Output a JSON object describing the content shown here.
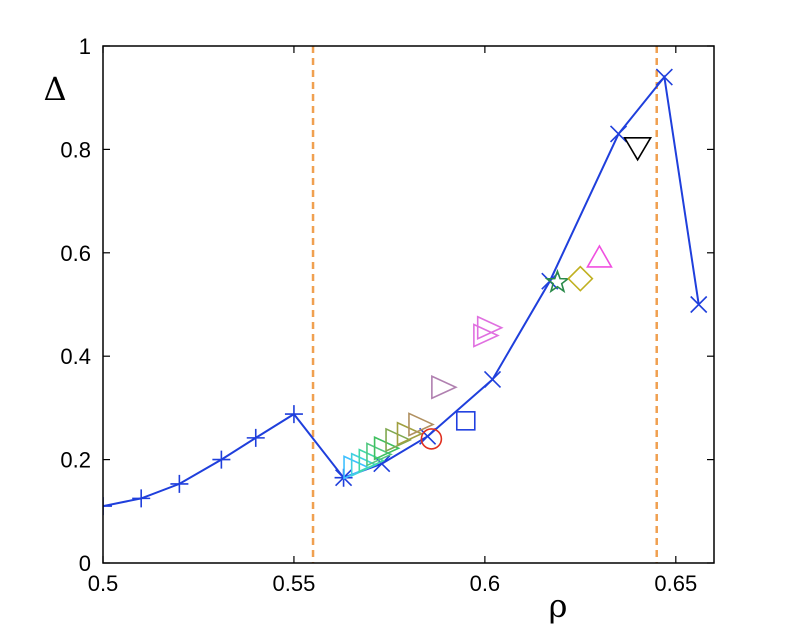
{
  "chart_data": {
    "type": "scatter",
    "title": "",
    "xlabel": "ρ",
    "ylabel": "Δ",
    "xlim": [
      0.5,
      0.66
    ],
    "ylim": [
      0,
      1
    ],
    "xticks": [
      0.5,
      0.55,
      0.6,
      0.65
    ],
    "xtick_labels": [
      "0.5",
      "0.55",
      "0.6",
      "0.65"
    ],
    "yticks": [
      0,
      0.2,
      0.4,
      0.6,
      0.8,
      1
    ],
    "ytick_labels": [
      "0",
      "0.2",
      "0.4",
      "0.6",
      "0.8",
      "1"
    ],
    "grid": false,
    "legend": "none",
    "vertical_lines": {
      "x": [
        0.555,
        0.645
      ],
      "color": "#f0a050",
      "style": "dashed"
    },
    "series": [
      {
        "marker": "plus",
        "color": "#1f3fdc",
        "line": true,
        "points": [
          [
            0.5,
            0.11
          ],
          [
            0.51,
            0.125
          ],
          [
            0.52,
            0.153
          ],
          [
            0.531,
            0.2
          ],
          [
            0.54,
            0.242
          ],
          [
            0.55,
            0.288
          ],
          [
            0.563,
            0.165
          ]
        ]
      },
      {
        "marker": "x",
        "color": "#1f3fdc",
        "line": true,
        "points": [
          [
            0.563,
            0.165
          ],
          [
            0.573,
            0.192
          ],
          [
            0.585,
            0.245
          ],
          [
            0.602,
            0.355
          ],
          [
            0.617,
            0.545
          ],
          [
            0.635,
            0.83
          ],
          [
            0.647,
            0.94
          ],
          [
            0.656,
            0.5
          ]
        ]
      },
      {
        "marker": "triangle-right",
        "color_sequence": [
          "#40c0ff",
          "#40d0e0",
          "#40d8a8",
          "#50c880",
          "#40c060",
          "#80a850",
          "#a0a040",
          "#b09060"
        ],
        "line": false,
        "points": [
          [
            0.566,
            0.185
          ],
          [
            0.568,
            0.19
          ],
          [
            0.57,
            0.198
          ],
          [
            0.572,
            0.21
          ],
          [
            0.574,
            0.222
          ],
          [
            0.577,
            0.238
          ],
          [
            0.58,
            0.25
          ],
          [
            0.583,
            0.268
          ]
        ]
      },
      {
        "marker": "triangle-right",
        "color": "#b080b0",
        "line": false,
        "points": [
          [
            0.589,
            0.34
          ]
        ]
      },
      {
        "marker": "triangle-right",
        "color": "#e070e0",
        "line": false,
        "points": [
          [
            0.6,
            0.44
          ],
          [
            0.601,
            0.455
          ]
        ]
      },
      {
        "marker": "circle",
        "color": "#e03020",
        "line": false,
        "points": [
          [
            0.586,
            0.24
          ]
        ]
      },
      {
        "marker": "square",
        "color": "#2040e0",
        "line": false,
        "points": [
          [
            0.595,
            0.275
          ]
        ]
      },
      {
        "marker": "star",
        "color": "#2a8a4a",
        "line": false,
        "points": [
          [
            0.619,
            0.543
          ]
        ]
      },
      {
        "marker": "diamond",
        "color": "#c0b020",
        "line": false,
        "points": [
          [
            0.625,
            0.55
          ]
        ]
      },
      {
        "marker": "triangle-up",
        "color": "#f050e0",
        "line": false,
        "points": [
          [
            0.63,
            0.59
          ]
        ]
      },
      {
        "marker": "triangle-down",
        "color": "#000000",
        "line": false,
        "points": [
          [
            0.64,
            0.805
          ]
        ]
      }
    ]
  }
}
